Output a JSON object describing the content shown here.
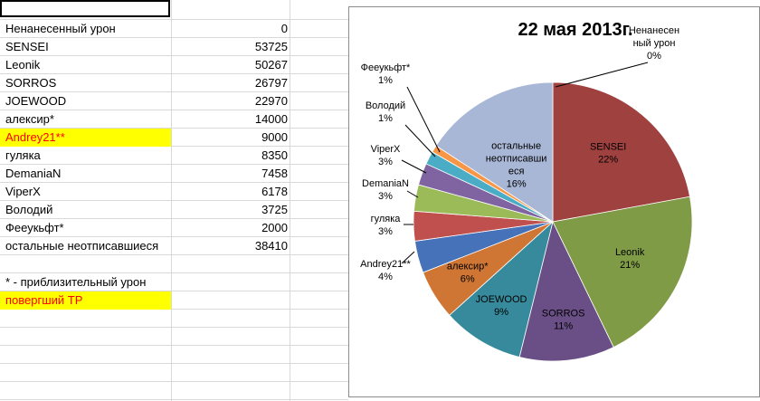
{
  "sheet": {
    "rows": [
      {
        "name": "Ненанесенный урон",
        "value": "0"
      },
      {
        "name": "SENSEI",
        "value": "53725"
      },
      {
        "name": "Leonik",
        "value": "50267"
      },
      {
        "name": "SORROS",
        "value": "26797"
      },
      {
        "name": "JOEWOOD",
        "value": "22970"
      },
      {
        "name": "алексир*",
        "value": "14000"
      },
      {
        "name": "Andrey21**",
        "value": "9000",
        "highlight": true
      },
      {
        "name": "гуляка",
        "value": "8350"
      },
      {
        "name": "DemaniaN",
        "value": "7458"
      },
      {
        "name": "ViperX",
        "value": "6178"
      },
      {
        "name": "Володий",
        "value": "3725"
      },
      {
        "name": "Фееукьфт*",
        "value": "2000"
      },
      {
        "name": "остальные неотписавшиеся",
        "value": "38410"
      }
    ],
    "note1": "* - приблизительный урон",
    "note2": "повергший ТР"
  },
  "colors": {
    "highlight": "#ffff00",
    "note_red": "#ff0000"
  },
  "chart_data": {
    "type": "pie",
    "title": "22 мая 2013г.",
    "slices": [
      {
        "label": "Ненанесенный урон",
        "value": 0,
        "percent": "0%",
        "color": "#ffffff"
      },
      {
        "label": "SENSEI",
        "value": 53725,
        "percent": "22%",
        "color": "#9e413f"
      },
      {
        "label": "Leonik",
        "value": 50267,
        "percent": "21%",
        "color": "#7f9b46"
      },
      {
        "label": "SORROS",
        "value": 26797,
        "percent": "11%",
        "color": "#6a4f86"
      },
      {
        "label": "JOEWOOD",
        "value": 22970,
        "percent": "9%",
        "color": "#368a9c"
      },
      {
        "label": "алексир*",
        "value": 14000,
        "percent": "6%",
        "color": "#cf7634"
      },
      {
        "label": "Andrey21**",
        "value": 9000,
        "percent": "4%",
        "color": "#4572b8"
      },
      {
        "label": "гуляка",
        "value": 8350,
        "percent": "3%",
        "color": "#c0504d"
      },
      {
        "label": "DemaniaN",
        "value": 7458,
        "percent": "3%",
        "color": "#9bbb59"
      },
      {
        "label": "ViperX",
        "value": 6178,
        "percent": "3%",
        "color": "#8064a2"
      },
      {
        "label": "Володий",
        "value": 3725,
        "percent": "1%",
        "color": "#4bacc6"
      },
      {
        "label": "Фееукьфт*",
        "value": 2000,
        "percent": "1%",
        "color": "#f79646"
      },
      {
        "label": "остальные неотписавшиеся",
        "value": 38410,
        "percent": "16%",
        "color": "#a9b7d6"
      }
    ],
    "display_labels": [
      "Ненанесен ный урон",
      "SENSEI",
      "Leonik",
      "SORROS",
      "JOEWOOD",
      "алексир*",
      "Andrey21**",
      "гуляка",
      "DemaniaN",
      "ViperX",
      "Володий",
      "Фееукьфт*",
      "остальные неотписавши еся"
    ]
  }
}
